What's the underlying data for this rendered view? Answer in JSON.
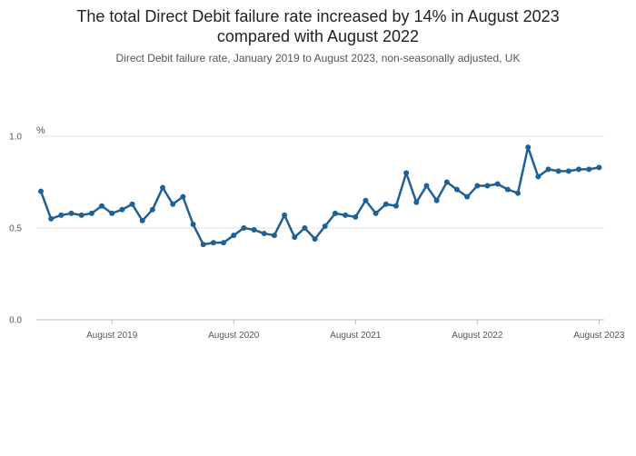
{
  "header": {
    "title_line1": "The total Direct Debit failure rate increased by 14% in August 2023",
    "title_line2": "compared with August 2022",
    "subtitle": "Direct Debit failure rate, January 2019 to August 2023, non-seasonally adjusted, UK"
  },
  "chart_data": {
    "type": "line",
    "title": "The total Direct Debit failure rate increased by 14% in August 2023 compared with August 2022",
    "subtitle": "Direct Debit failure rate, January 2019 to August 2023, non-seasonally adjusted, UK",
    "ylabel": "%",
    "ylim": [
      0,
      1.0
    ],
    "yticks": [
      0.0,
      0.5,
      1.0
    ],
    "ytick_labels": [
      "0.0",
      "0.5",
      "1.0"
    ],
    "xticks": [
      "2019-08",
      "2020-08",
      "2021-08",
      "2022-08",
      "2023-08"
    ],
    "xtick_labels": [
      "August 2019",
      "August 2020",
      "August 2021",
      "August 2022",
      "August 2023"
    ],
    "x_start": "2019-01",
    "grid": true,
    "color": "#206095",
    "series": [
      {
        "x": [
          "2019-01",
          "2019-02",
          "2019-03",
          "2019-04",
          "2019-05",
          "2019-06",
          "2019-07",
          "2019-08",
          "2019-09",
          "2019-10",
          "2019-11",
          "2019-12",
          "2020-01",
          "2020-02",
          "2020-03",
          "2020-04",
          "2020-05",
          "2020-06",
          "2020-07",
          "2020-08",
          "2020-09",
          "2020-10",
          "2020-11",
          "2020-12",
          "2021-01",
          "2021-02",
          "2021-03",
          "2021-04",
          "2021-05",
          "2021-06",
          "2021-07",
          "2021-08",
          "2021-09",
          "2021-10",
          "2021-11",
          "2021-12",
          "2022-01",
          "2022-02",
          "2022-03",
          "2022-04",
          "2022-05",
          "2022-06",
          "2022-07",
          "2022-08",
          "2022-09",
          "2022-10",
          "2022-11",
          "2022-12",
          "2023-01",
          "2023-02",
          "2023-03",
          "2023-04",
          "2023-05",
          "2023-06",
          "2023-07",
          "2023-08"
        ],
        "values": [
          0.7,
          0.55,
          0.57,
          0.58,
          0.57,
          0.58,
          0.62,
          0.58,
          0.6,
          0.63,
          0.54,
          0.6,
          0.72,
          0.63,
          0.67,
          0.52,
          0.41,
          0.42,
          0.42,
          0.46,
          0.5,
          0.49,
          0.47,
          0.46,
          0.57,
          0.45,
          0.5,
          0.44,
          0.51,
          0.58,
          0.57,
          0.56,
          0.65,
          0.58,
          0.63,
          0.62,
          0.8,
          0.64,
          0.73,
          0.65,
          0.75,
          0.71,
          0.67,
          0.73,
          0.73,
          0.74,
          0.71,
          0.69,
          0.94,
          0.78,
          0.82,
          0.81,
          0.81,
          0.82,
          0.82,
          0.83
        ]
      }
    ]
  }
}
